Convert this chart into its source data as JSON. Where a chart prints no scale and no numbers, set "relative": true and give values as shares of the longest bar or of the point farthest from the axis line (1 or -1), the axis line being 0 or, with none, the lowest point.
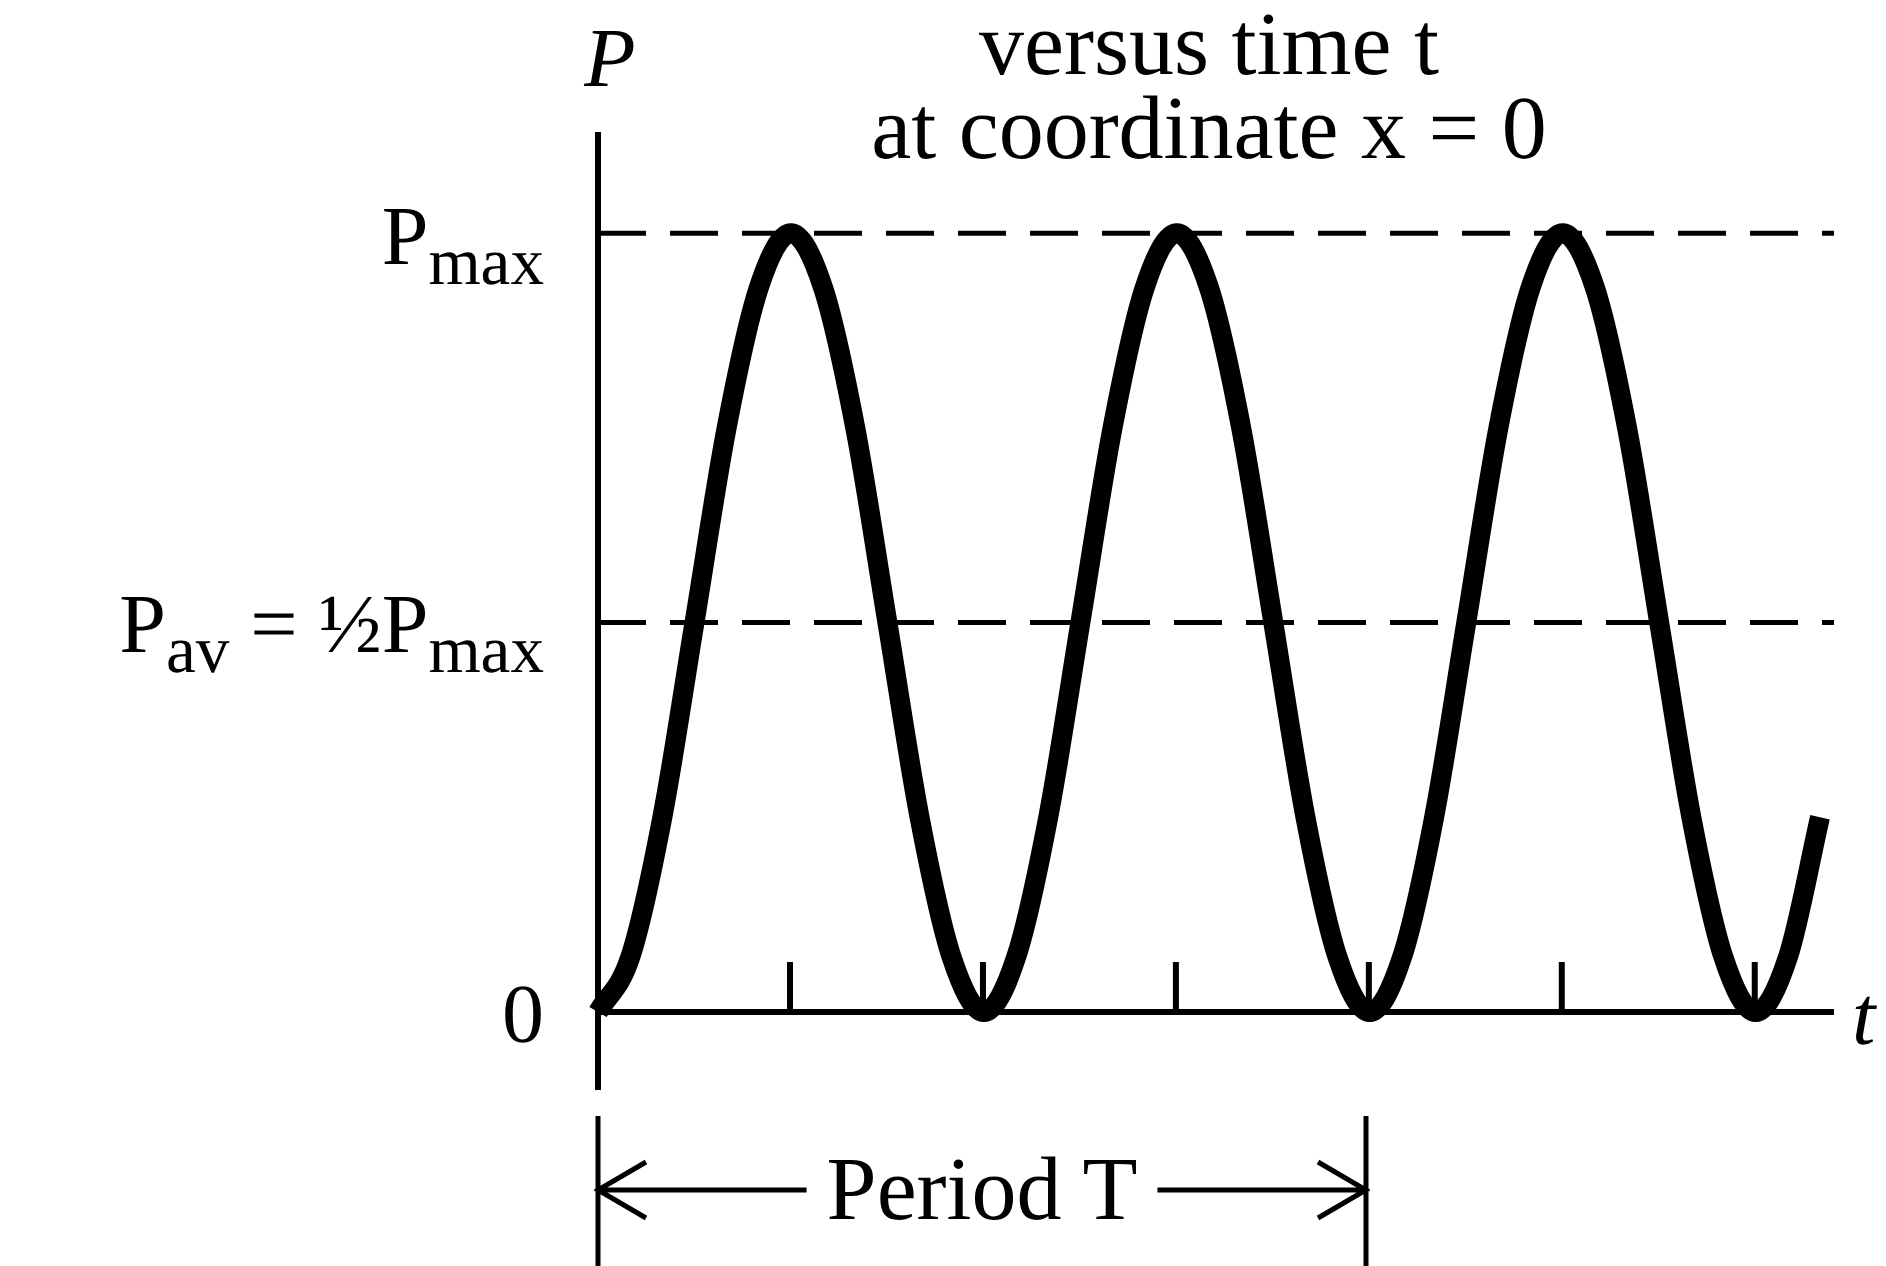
{
  "chart_data": {
    "type": "line",
    "title": "versus time t",
    "subtitle": "at coordinate x = 0",
    "xlabel": "t",
    "ylabel": "P",
    "relative": true,
    "categories": [
      null,
      null,
      null,
      null,
      null,
      null,
      null,
      null,
      null,
      null,
      null,
      null,
      null,
      null,
      null,
      null,
      null,
      null,
      null,
      null,
      null,
      null,
      null,
      null,
      null,
      null,
      null,
      null,
      null,
      null,
      null,
      null,
      null,
      null,
      null,
      null,
      null,
      null,
      null
    ],
    "values": [
      0,
      0.07,
      0.25,
      0.5,
      0.75,
      0.93,
      1,
      0.93,
      0.75,
      0.5,
      0.25,
      0.07,
      0,
      0.07,
      0.25,
      0.5,
      0.75,
      0.93,
      1,
      0.93,
      0.75,
      0.5,
      0.25,
      0.07,
      0,
      0.07,
      0.25,
      0.5,
      0.75,
      0.93,
      1,
      0.93,
      0.75,
      0.5,
      0.25,
      0.07,
      0,
      0.07,
      0.25
    ],
    "color": "#000000",
    "ref_lines": [
      {
        "axis": "y",
        "value": 1,
        "label": "P$_{max}$",
        "line_style": "dashed",
        "color": "#000000"
      },
      {
        "axis": "y",
        "value": 0.5,
        "label": "P$_{av}$ = ½P$_{max}$",
        "line_style": "dashed",
        "color": "#000000"
      }
    ],
    "annotations": [
      "0",
      "Period T"
    ]
  }
}
